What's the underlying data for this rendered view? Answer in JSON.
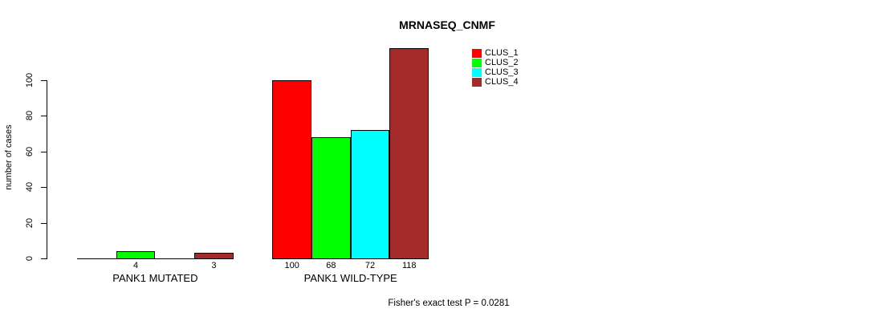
{
  "chart_data": {
    "type": "bar",
    "title": "MRNASEQ_CNMF",
    "ylabel": "number of cases",
    "ylim": [
      0,
      118
    ],
    "yticks": [
      0,
      20,
      40,
      60,
      80,
      100
    ],
    "grid": false,
    "legend": {
      "position": "top-right",
      "items": [
        {
          "label": "CLUS_1",
          "color": "#ff0000"
        },
        {
          "label": "CLUS_2",
          "color": "#00ff00"
        },
        {
          "label": "CLUS_3",
          "color": "#00ffff"
        },
        {
          "label": "CLUS_4",
          "color": "#a52a2a"
        }
      ]
    },
    "groups": [
      {
        "label": "PANK1 MUTATED",
        "bars": [
          {
            "cluster": "CLUS_1",
            "value": 0,
            "label": ""
          },
          {
            "cluster": "CLUS_2",
            "value": 4,
            "label": "4"
          },
          {
            "cluster": "CLUS_3",
            "value": 0,
            "label": ""
          },
          {
            "cluster": "CLUS_4",
            "value": 3,
            "label": "3"
          }
        ]
      },
      {
        "label": "PANK1 WILD-TYPE",
        "bars": [
          {
            "cluster": "CLUS_1",
            "value": 100,
            "label": "100"
          },
          {
            "cluster": "CLUS_2",
            "value": 68,
            "label": "68"
          },
          {
            "cluster": "CLUS_3",
            "value": 72,
            "label": "72"
          },
          {
            "cluster": "CLUS_4",
            "value": 118,
            "label": "118"
          }
        ]
      }
    ],
    "annotation": "Fisher's exact test P = 0.0281"
  }
}
